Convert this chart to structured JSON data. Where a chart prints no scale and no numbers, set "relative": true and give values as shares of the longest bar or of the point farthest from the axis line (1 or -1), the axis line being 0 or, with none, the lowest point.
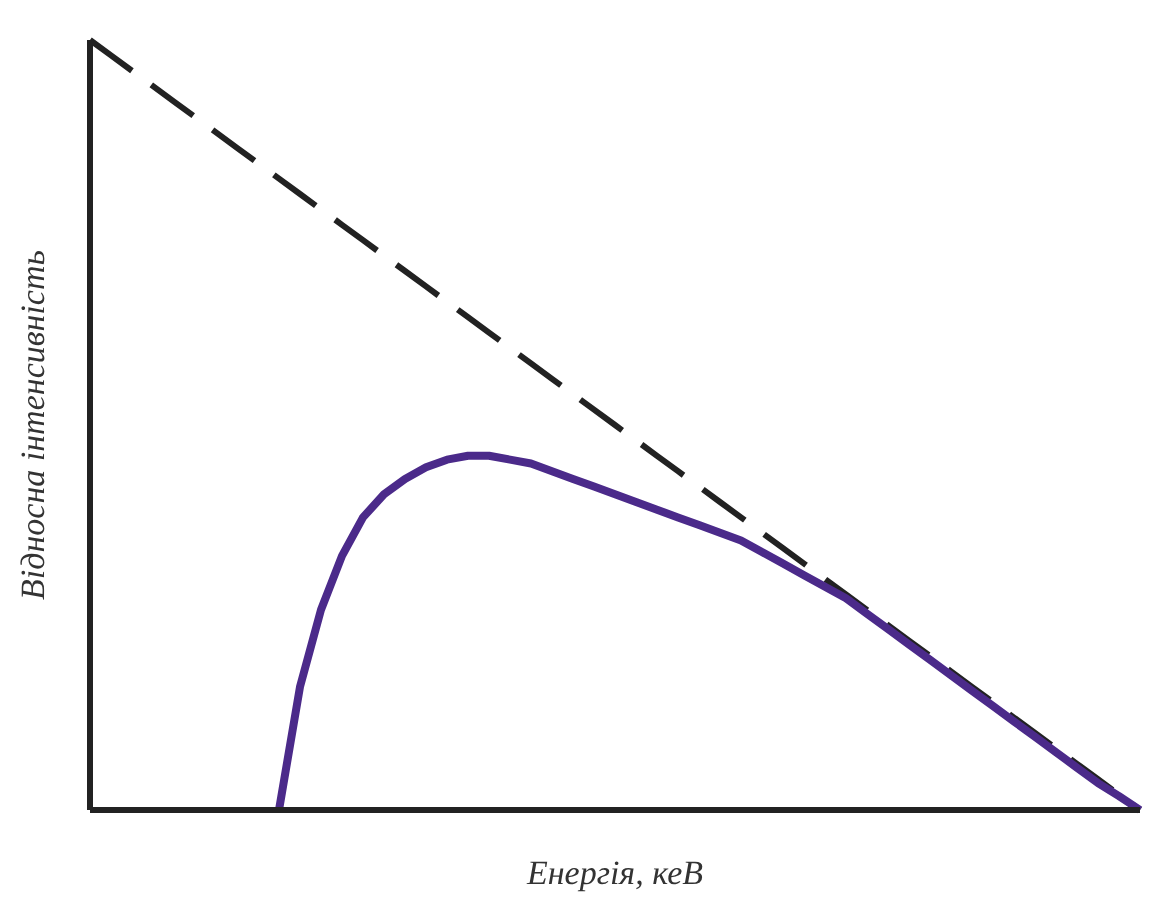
{
  "chart_data": {
    "type": "line",
    "relative": true,
    "xlabel": "Енергія, кеВ",
    "ylabel": "Відносна інтенсивність",
    "categories": [
      null,
      null,
      null,
      null,
      null,
      null,
      null,
      null,
      null,
      null,
      null,
      null,
      null,
      null,
      null,
      null,
      null,
      null,
      null,
      null,
      null,
      null,
      null,
      null,
      null,
      null,
      null,
      null,
      null,
      null,
      null,
      null,
      null,
      null,
      null,
      null,
      null,
      null,
      null,
      null,
      null,
      null,
      null,
      null,
      null,
      null,
      null,
      null,
      null,
      null,
      null
    ],
    "series": [
      {
        "color": "#222222",
        "line_style": "dashed",
        "values": [
          1,
          0.98,
          0.96,
          0.94,
          0.92,
          0.9,
          0.88,
          0.86,
          0.84,
          0.82,
          0.8,
          0.78,
          0.76,
          0.74,
          0.72,
          0.7,
          0.68,
          0.66,
          0.64,
          0.62,
          0.6,
          0.58,
          0.56,
          0.54,
          0.52,
          0.5,
          0.48,
          0.46,
          0.44,
          0.42,
          0.4,
          0.38,
          0.36,
          0.34,
          0.32,
          0.3,
          0.28,
          0.26,
          0.24,
          0.22,
          0.2,
          0.18,
          0.16,
          0.14,
          0.12,
          0.1,
          0.08,
          0.06,
          0.04,
          0.02,
          0
        ]
      },
      {
        "color": "#4b2a8a",
        "line_style": "solid",
        "values": [
          null,
          null,
          null,
          null,
          null,
          null,
          null,
          null,
          null,
          0,
          0.16,
          0.26,
          0.33,
          0.38,
          0.41,
          0.43,
          0.445,
          0.455,
          0.46,
          0.46,
          0.455,
          0.45,
          0.44,
          0.43,
          0.42,
          0.41,
          0.4,
          0.39,
          0.38,
          0.37,
          0.36,
          0.35,
          0.335,
          0.32,
          0.305,
          0.29,
          0.275,
          0.255,
          0.235,
          0.215,
          0.195,
          0.175,
          0.155,
          0.135,
          0.115,
          0.095,
          0.075,
          0.055,
          0.035,
          0.018,
          0
        ]
      }
    ]
  }
}
